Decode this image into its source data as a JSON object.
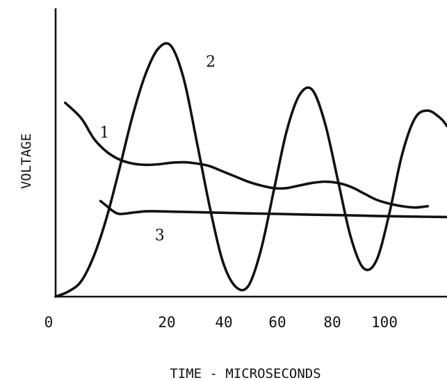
{
  "chart_data": {
    "type": "line",
    "xlabel": "TIME - MICROSECONDS",
    "ylabel": "VOLTAGE",
    "x_ticks": [
      "0",
      "20",
      "40",
      "60",
      "80",
      "100"
    ],
    "xlim": [
      0,
      122
    ],
    "ylim": [
      0,
      10
    ],
    "grid": false,
    "legend": "none",
    "series": [
      {
        "name": "1",
        "x": [
          3,
          8,
          12,
          16,
          20,
          24,
          28,
          32,
          36,
          40,
          44,
          48,
          52,
          56,
          60,
          64,
          68,
          72,
          76,
          80,
          84,
          88,
          92,
          96,
          100,
          104,
          108,
          112,
          116
        ],
        "y": [
          7.5,
          6.9,
          6.1,
          5.6,
          5.3,
          5.15,
          5.1,
          5.12,
          5.18,
          5.2,
          5.15,
          5.05,
          4.85,
          4.65,
          4.45,
          4.3,
          4.2,
          4.2,
          4.3,
          4.4,
          4.45,
          4.4,
          4.25,
          4.0,
          3.75,
          3.6,
          3.5,
          3.45,
          3.5
        ]
      },
      {
        "name": "2",
        "x": [
          0,
          4,
          8,
          12,
          16,
          20,
          24,
          28,
          32,
          36,
          40,
          44,
          48,
          52,
          56,
          60,
          64,
          68,
          72,
          76,
          80,
          84,
          88,
          92,
          96,
          100,
          104,
          108,
          112,
          116,
          120,
          122
        ],
        "y": [
          0,
          0.2,
          0.6,
          1.6,
          3.1,
          5.0,
          7.0,
          8.6,
          9.6,
          9.7,
          8.4,
          6.0,
          3.5,
          1.4,
          0.4,
          0.4,
          1.8,
          4.1,
          6.4,
          7.8,
          8.0,
          6.7,
          4.5,
          2.3,
          1.1,
          1.4,
          3.2,
          5.5,
          6.9,
          7.2,
          6.9,
          6.6
        ]
      },
      {
        "name": "3",
        "x": [
          14,
          16,
          18,
          20,
          24,
          28,
          32,
          40,
          50,
          60,
          70,
          80,
          90,
          100,
          110,
          122
        ],
        "y": [
          3.7,
          3.5,
          3.3,
          3.2,
          3.25,
          3.3,
          3.3,
          3.28,
          3.25,
          3.22,
          3.2,
          3.17,
          3.15,
          3.12,
          3.1,
          3.08
        ]
      }
    ]
  }
}
